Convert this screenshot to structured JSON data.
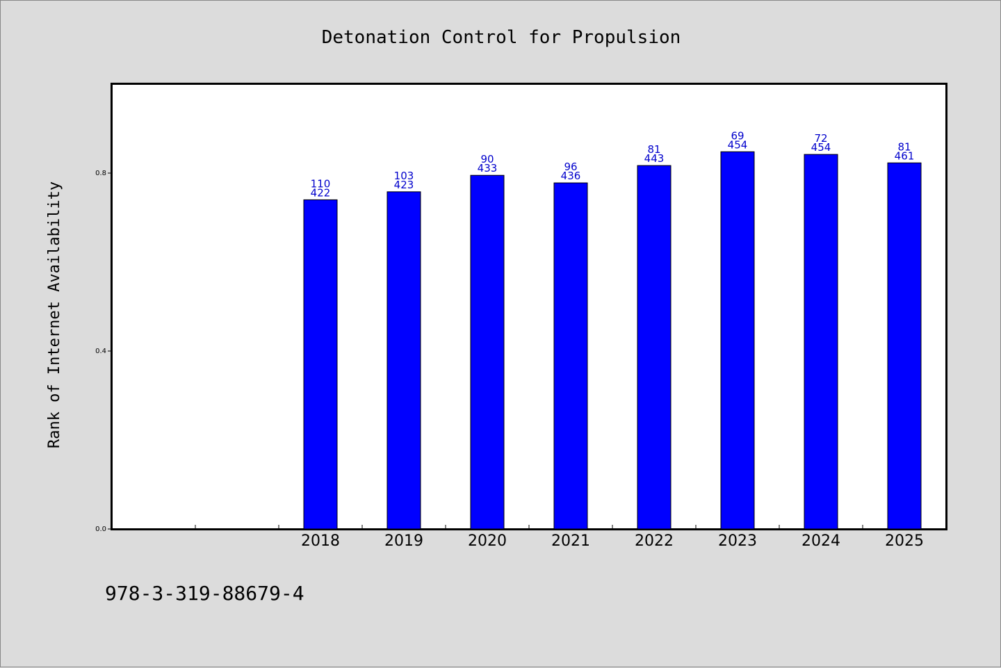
{
  "colors": {
    "background": "#dcdcdc",
    "plot_background": "#ffffff",
    "bar": "#0000ff",
    "bar_label": "#0000cc",
    "axis": "#000000"
  },
  "footer": {
    "isbn": "978-3-319-88679-4"
  },
  "chart_data": {
    "type": "bar",
    "title": "Detonation Control for Propulsion",
    "xlabel": "",
    "ylabel": "Rank of Internet Availability",
    "categories": [
      "2018",
      "2019",
      "2020",
      "2021",
      "2022",
      "2023",
      "2024",
      "2025"
    ],
    "values": [
      0.74,
      0.758,
      0.795,
      0.778,
      0.817,
      0.848,
      0.842,
      0.823
    ],
    "bar_labels": [
      [
        "110",
        "422"
      ],
      [
        "103",
        "423"
      ],
      [
        "90",
        "433"
      ],
      [
        "96",
        "436"
      ],
      [
        "81",
        "443"
      ],
      [
        "69",
        "454"
      ],
      [
        "72",
        "454"
      ],
      [
        "81",
        "461"
      ]
    ],
    "ylim": [
      0,
      1.0
    ],
    "yticks": [
      "0.0",
      "0.4",
      "0.8"
    ],
    "ytick_values": [
      0.0,
      0.4,
      0.8
    ],
    "grid": false,
    "legend": "none"
  }
}
